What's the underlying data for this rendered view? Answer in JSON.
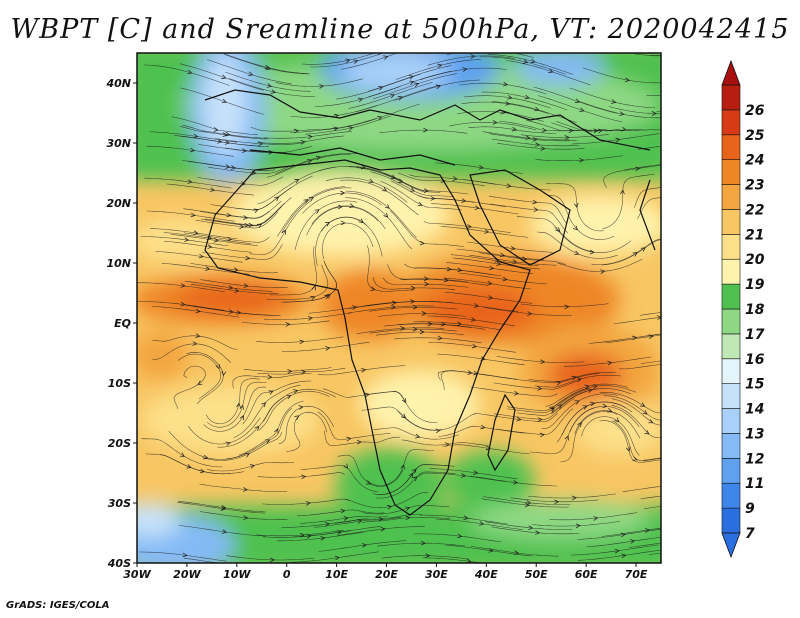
{
  "title": "WBPT [C] and Sreamline at 500hPa, VT: 2020042415",
  "credit": "GrADS: IGES/COLA",
  "map": {
    "lon_range": [
      -30,
      75
    ],
    "lat_range": [
      -40,
      45
    ],
    "lat_ticks": [
      {
        "value": 40,
        "label": "40N"
      },
      {
        "value": 30,
        "label": "30N"
      },
      {
        "value": 20,
        "label": "20N"
      },
      {
        "value": 10,
        "label": "10N"
      },
      {
        "value": 0,
        "label": "EQ"
      },
      {
        "value": -10,
        "label": "10S"
      },
      {
        "value": -20,
        "label": "20S"
      },
      {
        "value": -30,
        "label": "30S"
      },
      {
        "value": -40,
        "label": "40S"
      }
    ],
    "lon_ticks": [
      {
        "value": -30,
        "label": "30W"
      },
      {
        "value": -20,
        "label": "20W"
      },
      {
        "value": -10,
        "label": "10W"
      },
      {
        "value": 0,
        "label": "0"
      },
      {
        "value": 10,
        "label": "10E"
      },
      {
        "value": 20,
        "label": "20E"
      },
      {
        "value": 30,
        "label": "30E"
      },
      {
        "value": 40,
        "label": "40E"
      },
      {
        "value": 50,
        "label": "50E"
      },
      {
        "value": 60,
        "label": "60E"
      },
      {
        "value": 70,
        "label": "70E"
      }
    ]
  },
  "colorbar": {
    "levels": [
      {
        "label": "7",
        "color": "#2a6fe0"
      },
      {
        "label": "9",
        "color": "#3f86ea"
      },
      {
        "label": "11",
        "color": "#5fa0f0"
      },
      {
        "label": "12",
        "color": "#84baf5"
      },
      {
        "label": "13",
        "color": "#a8d0f8"
      },
      {
        "label": "14",
        "color": "#c6e2fa"
      },
      {
        "label": "15",
        "color": "#e4f4fb"
      },
      {
        "label": "16",
        "color": "#bfe8b4"
      },
      {
        "label": "17",
        "color": "#8ed884"
      },
      {
        "label": "18",
        "color": "#50c150"
      },
      {
        "label": "19",
        "color": "#fff2ac"
      },
      {
        "label": "20",
        "color": "#fde08a"
      },
      {
        "label": "21",
        "color": "#f8c663"
      },
      {
        "label": "22",
        "color": "#f3a640"
      },
      {
        "label": "23",
        "color": "#ee8625"
      },
      {
        "label": "24",
        "color": "#e8641a"
      },
      {
        "label": "25",
        "color": "#d83a14"
      },
      {
        "label": "26",
        "color": "#b81e10"
      }
    ],
    "under_color": "#2a6fe0",
    "over_color": "#a81010"
  }
}
